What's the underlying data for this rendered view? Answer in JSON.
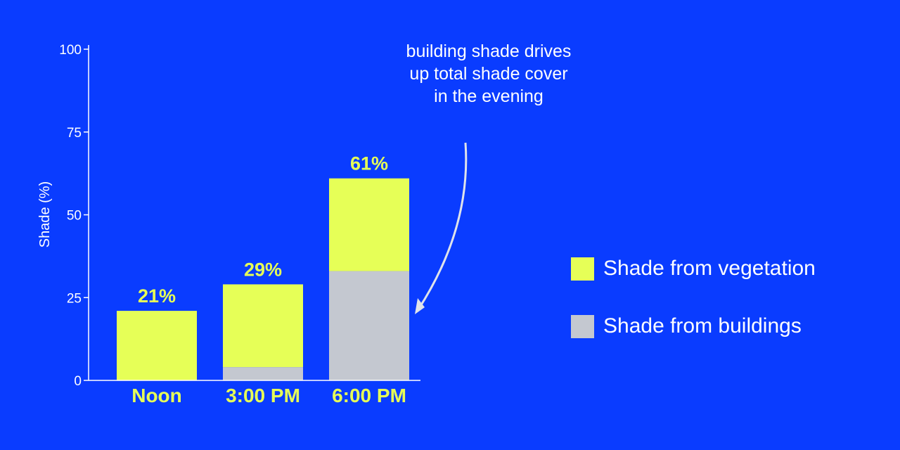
{
  "chart_data": {
    "type": "bar",
    "stacked": true,
    "categories": [
      "Noon",
      "3:00 PM",
      "6:00 PM"
    ],
    "series": [
      {
        "name": "Shade from buildings",
        "values": [
          0,
          4,
          33
        ],
        "color": "#c4c8d0"
      },
      {
        "name": "Shade from vegetation",
        "values": [
          21,
          25,
          28
        ],
        "color": "#e6ff57"
      }
    ],
    "totals": [
      "21%",
      "29%",
      "61%"
    ],
    "ylabel": "Shade (%)",
    "ylim": [
      0,
      100
    ],
    "yticks": [
      0,
      25,
      50,
      75,
      100
    ],
    "grid": false,
    "legend_position": "right",
    "legend": [
      {
        "label": "Shade from vegetation",
        "color": "#e6ff57"
      },
      {
        "label": "Shade from buildings",
        "color": "#c4c8d0"
      }
    ],
    "annotation": "building shade drives up total shade cover in the evening",
    "colors": {
      "background": "#0a3cff",
      "axis": "#ffffff",
      "label": "#e6ff57"
    }
  }
}
